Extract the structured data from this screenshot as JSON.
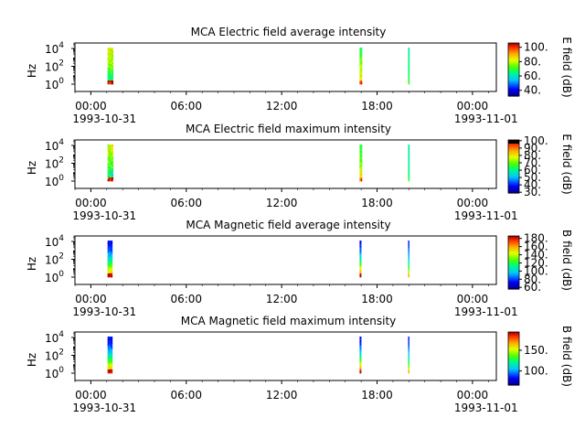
{
  "chart_data": [
    {
      "type": "heatmap",
      "title": "MCA  Electric field average intensity",
      "ylabel": "Hz",
      "colorbar_label": "E field (dB)",
      "colorbar_ticks": [
        "40.",
        "60.",
        "80.",
        "100."
      ],
      "colorbar_range": [
        32,
        106
      ],
      "colormap": "rainbow_jet",
      "colorbar_extra_black_top": false,
      "y_scale": "log",
      "y_ticks": [
        {
          "base": "10",
          "exp": "0"
        },
        {
          "base": "10",
          "exp": "2"
        },
        {
          "base": "10",
          "exp": "4"
        }
      ],
      "x_ticks": [
        "00:00",
        "06:00",
        "12:00",
        "18:00",
        "00:00"
      ],
      "x_dates": [
        "1993-10-31",
        "1993-11-01"
      ],
      "x_range_hours": [
        -1,
        25.5
      ],
      "bursts": [
        {
          "start_hour": 1.05,
          "end_hour": 1.4,
          "low_db": 60,
          "high_db": 82,
          "peak_db": 104,
          "noise_db": 16
        },
        {
          "start_hour": 16.9,
          "end_hour": 17.05,
          "low_db": 90,
          "high_db": 70,
          "peak_db": 100,
          "noise_db": 10
        },
        {
          "start_hour": 19.95,
          "end_hour": 20.03,
          "low_db": 70,
          "high_db": 62,
          "peak_db": 72,
          "noise_db": 6
        }
      ]
    },
    {
      "type": "heatmap",
      "title": "MCA  Electric field maximum intensity",
      "ylabel": "Hz",
      "colorbar_label": "E field (dB)",
      "colorbar_ticks": [
        "30.",
        "40.",
        "50.",
        "60.",
        "70.",
        "80.",
        "90.",
        "100."
      ],
      "colorbar_range": [
        29,
        101
      ],
      "colormap": "rainbow_jet",
      "colorbar_extra_black_top": true,
      "y_scale": "log",
      "y_ticks": [
        {
          "base": "10",
          "exp": "0"
        },
        {
          "base": "10",
          "exp": "2"
        },
        {
          "base": "10",
          "exp": "4"
        }
      ],
      "x_ticks": [
        "00:00",
        "06:00",
        "12:00",
        "18:00",
        "00:00"
      ],
      "x_dates": [
        "1993-10-31",
        "1993-11-01"
      ],
      "x_range_hours": [
        -1,
        25.5
      ],
      "bursts": [
        {
          "start_hour": 1.05,
          "end_hour": 1.4,
          "low_db": 55,
          "high_db": 75,
          "peak_db": 98,
          "noise_db": 18
        },
        {
          "start_hour": 16.9,
          "end_hour": 17.05,
          "low_db": 85,
          "high_db": 65,
          "peak_db": 95,
          "noise_db": 10
        },
        {
          "start_hour": 19.95,
          "end_hour": 20.03,
          "low_db": 62,
          "high_db": 58,
          "peak_db": 66,
          "noise_db": 5
        }
      ]
    },
    {
      "type": "heatmap",
      "title": "MCA  Magnetic field average intensity",
      "ylabel": "Hz",
      "colorbar_label": "B field (dB)",
      "colorbar_ticks": [
        "60.",
        "80.",
        "100.",
        "120.",
        "140.",
        "160.",
        "180."
      ],
      "colorbar_range": [
        56,
        186
      ],
      "colormap": "rainbow_jet",
      "colorbar_extra_black_top": false,
      "y_scale": "log",
      "y_ticks": [
        {
          "base": "10",
          "exp": "0"
        },
        {
          "base": "10",
          "exp": "2"
        },
        {
          "base": "10",
          "exp": "4"
        }
      ],
      "x_ticks": [
        "00:00",
        "06:00",
        "12:00",
        "18:00",
        "00:00"
      ],
      "x_dates": [
        "1993-10-31",
        "1993-11-01"
      ],
      "x_range_hours": [
        -1,
        25.5
      ],
      "bursts": [
        {
          "start_hour": 1.05,
          "end_hour": 1.35,
          "low_db": 170,
          "high_db": 72,
          "peak_db": 185,
          "noise_db": 14
        },
        {
          "start_hour": 16.9,
          "end_hour": 17.0,
          "low_db": 178,
          "high_db": 72,
          "peak_db": 185,
          "noise_db": 10
        },
        {
          "start_hour": 19.95,
          "end_hour": 20.02,
          "low_db": 150,
          "high_db": 75,
          "peak_db": 160,
          "noise_db": 6
        }
      ]
    },
    {
      "type": "heatmap",
      "title": "MCA  Magnetic field maximum intensity",
      "ylabel": "Hz",
      "colorbar_label": "B field (dB)",
      "colorbar_ticks": [
        "100.",
        "150."
      ],
      "colorbar_range": [
        66,
        194
      ],
      "colormap": "rainbow_jet",
      "colorbar_extra_black_top": false,
      "y_scale": "log",
      "y_ticks": [
        {
          "base": "10",
          "exp": "0"
        },
        {
          "base": "10",
          "exp": "2"
        },
        {
          "base": "10",
          "exp": "4"
        }
      ],
      "x_ticks": [
        "00:00",
        "06:00",
        "12:00",
        "18:00",
        "00:00"
      ],
      "x_dates": [
        "1993-10-31",
        "1993-11-01"
      ],
      "x_range_hours": [
        -1,
        25.5
      ],
      "bursts": [
        {
          "start_hour": 1.05,
          "end_hour": 1.35,
          "low_db": 180,
          "high_db": 80,
          "peak_db": 192,
          "noise_db": 14
        },
        {
          "start_hour": 16.9,
          "end_hour": 17.0,
          "low_db": 185,
          "high_db": 82,
          "peak_db": 192,
          "noise_db": 10
        },
        {
          "start_hour": 19.95,
          "end_hour": 20.02,
          "low_db": 160,
          "high_db": 85,
          "peak_db": 168,
          "noise_db": 6
        }
      ]
    }
  ]
}
